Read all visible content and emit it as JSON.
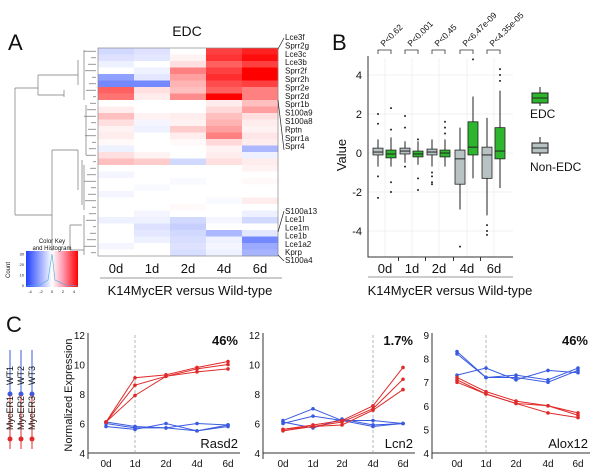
{
  "chart_data": [
    {
      "panel": "A",
      "type": "heatmap",
      "title": "EDC",
      "xlabel": "K14MycER versus Wild-type",
      "columns": [
        "0d",
        "1d",
        "2d",
        "4d",
        "6d"
      ],
      "gene_labels_top": [
        "Lce3f",
        "Sprr2g",
        "Lce3c",
        "Lce3b",
        "Sprr2f",
        "Sprr2h",
        "Sprr2e",
        "Sprr2d",
        "Sprr1b",
        "S100a9",
        "S100a8",
        "Rptn",
        "Sprr1a",
        "Sprr4"
      ],
      "gene_labels_bottom": [
        "S100a13",
        "Lce1l",
        "Lce1m",
        "Lce1b",
        "Lce1a2",
        "Kprp",
        "S100a4"
      ],
      "values": [
        [
          -0.8,
          -0.6,
          0,
          3,
          3.5
        ],
        [
          -0.6,
          -0.5,
          0.2,
          3.2,
          3.8
        ],
        [
          -0.3,
          0,
          0.5,
          2.5,
          3
        ],
        [
          0,
          -0.3,
          2,
          3,
          4.2
        ],
        [
          -2,
          -0.5,
          1.5,
          3.3,
          4
        ],
        [
          -2.5,
          -2.5,
          1.2,
          2.8,
          3
        ],
        [
          2.5,
          0.5,
          1,
          2.5,
          2
        ],
        [
          2.2,
          0.3,
          1.8,
          4,
          2
        ],
        [
          0,
          0,
          0,
          0.3,
          1
        ],
        [
          0.3,
          0,
          0,
          0.6,
          1.5
        ],
        [
          1,
          0.2,
          0.3,
          1,
          0.5
        ],
        [
          0.5,
          -0.2,
          0.2,
          1.2,
          0.3
        ],
        [
          0.2,
          -0.3,
          0.8,
          1.5,
          0.2
        ],
        [
          0.3,
          0,
          0.3,
          2,
          0.4
        ],
        [
          0.1,
          0,
          0.1,
          0.6,
          0.3
        ],
        [
          -0.3,
          0,
          0,
          0.2,
          -1.5
        ],
        [
          0.5,
          0.2,
          0,
          0.3,
          -0.3
        ],
        [
          1,
          0.8,
          -0.8,
          0.5,
          0.3
        ],
        [
          0,
          0,
          0,
          0,
          0.2
        ],
        [
          -0.2,
          0,
          0,
          0,
          0
        ],
        [
          0,
          0,
          -0.1,
          0,
          0.1
        ],
        [
          0,
          -0.1,
          0,
          0,
          0
        ],
        [
          -0.2,
          0,
          0,
          0,
          0
        ],
        [
          0,
          0,
          0,
          -0.1,
          0.3
        ],
        [
          0,
          0,
          0.1,
          0,
          0
        ],
        [
          0,
          -0.2,
          0,
          0,
          -0.3
        ],
        [
          -0.3,
          -0.3,
          -0.8,
          -0.2,
          -0.8
        ],
        [
          0,
          -0.6,
          -1,
          0,
          0
        ],
        [
          0,
          -0.5,
          -0.8,
          -1.5,
          -0.5
        ],
        [
          0,
          -0.3,
          -0.7,
          -0.3,
          -2.5
        ],
        [
          -0.2,
          0,
          -0.6,
          -0.2,
          -1.8
        ],
        [
          0,
          0,
          -0.7,
          -0.3,
          -1.6
        ]
      ],
      "color_key": {
        "title_line1": "Color Key",
        "title_line2": "and Histogram",
        "ylabel": "Count",
        "yticks": [
          "0",
          "10",
          "20",
          "30"
        ],
        "xticks": [
          "-4",
          "-2",
          "0",
          "2",
          "4"
        ],
        "low_color": "#2040ff",
        "mid_color": "#ffffff",
        "high_color": "#ff0000"
      }
    },
    {
      "panel": "B",
      "type": "box",
      "ylabel": "Value",
      "xlabel": "K14MycER versus Wild-type",
      "categories": [
        "0d",
        "1d",
        "2d",
        "4d",
        "6d"
      ],
      "yticks": [
        -4,
        -2,
        0,
        2,
        4
      ],
      "ylim": [
        -5.2,
        5.2
      ],
      "pvalues": [
        "P<0.62",
        "P<0.001",
        "P<0.45",
        "P<6.47e-09",
        "P<4.35e-05"
      ],
      "series": [
        {
          "name": "Non-EDC",
          "color": "#b8c2c2",
          "boxes": [
            {
              "whislo": -0.7,
              "q1": -0.1,
              "med": 0.05,
              "q3": 0.25,
              "whishi": 0.7,
              "fliers": [
                2,
                1.5,
                -1.2,
                -2.3
              ]
            },
            {
              "whislo": -0.5,
              "q1": -0.05,
              "med": 0.1,
              "q3": 0.25,
              "whishi": 0.6,
              "fliers": [
                1.9,
                1.3,
                -0.7
              ]
            },
            {
              "whislo": -0.7,
              "q1": -0.1,
              "med": 0.05,
              "q3": 0.2,
              "whishi": 0.7,
              "fliers": [
                -1,
                -1.2,
                -1.5,
                -1.6
              ]
            },
            {
              "whislo": -2.9,
              "q1": -1.6,
              "med": -0.3,
              "q3": 0.15,
              "whishi": 1.3,
              "fliers": [
                -4.8
              ]
            },
            {
              "whislo": -3.2,
              "q1": -1.3,
              "med": -0.1,
              "q3": 0.3,
              "whishi": 1.8,
              "fliers": [
                -3.7,
                -4.0,
                -4.2
              ]
            }
          ]
        },
        {
          "name": "EDC",
          "color": "#2db52d",
          "boxes": [
            {
              "whislo": -0.7,
              "q1": -0.25,
              "med": -0.05,
              "q3": 0.15,
              "whishi": 0.8,
              "fliers": [
                2.3,
                1.2,
                -1.5,
                -2.0
              ]
            },
            {
              "whislo": -0.6,
              "q1": -0.2,
              "med": -0.05,
              "q3": 0.1,
              "whishi": 0.6,
              "fliers": [
                0.7,
                -1.3,
                -1.9
              ]
            },
            {
              "whislo": -0.7,
              "q1": -0.2,
              "med": 0,
              "q3": 0.15,
              "whishi": 0.7,
              "fliers": [
                1.0,
                1.3,
                1.6
              ]
            },
            {
              "whislo": -1.3,
              "q1": -0.1,
              "med": 0.3,
              "q3": 1.6,
              "whishi": 2.9,
              "fliers": [
                4.8
              ]
            },
            {
              "whislo": -1.8,
              "q1": -0.3,
              "med": 0.1,
              "q3": 1.3,
              "whishi": 3.2,
              "fliers": [
                3.7,
                4.0,
                4.3
              ]
            }
          ]
        }
      ],
      "legend": [
        "EDC",
        "Non-EDC"
      ],
      "legend_placement": "right"
    },
    {
      "panel": "C",
      "type": "line",
      "ylabel": "Normalized Expression",
      "legend": [
        "WT1",
        "WT2",
        "WT3",
        "MycER1",
        "MycER2",
        "MycER3"
      ],
      "wt_color": "#3a5be0",
      "myc_color": "#e02a2a",
      "x": [
        "0d",
        "1d",
        "2d",
        "4d",
        "6d"
      ],
      "plots": [
        {
          "gene": "Rasd2",
          "percent": "46%",
          "ylim": [
            4,
            12
          ],
          "yticks": [
            4,
            6,
            8,
            10,
            12
          ],
          "marker_at": "1d",
          "wt": [
            [
              6.1,
              5.8,
              5.7,
              6.0,
              5.9
            ],
            [
              5.8,
              5.6,
              6.0,
              5.5,
              5.9
            ],
            [
              6.0,
              5.7,
              5.7,
              5.5,
              5.8
            ]
          ],
          "myc": [
            [
              6.1,
              9.1,
              9.3,
              9.8,
              10.2
            ],
            [
              6.1,
              8.6,
              9.2,
              9.7,
              10.0
            ],
            [
              6.1,
              7.9,
              9.2,
              9.5,
              9.7
            ]
          ]
        },
        {
          "gene": "Lcn2",
          "percent": "1.7%",
          "ylim": [
            4,
            12
          ],
          "yticks": [
            4,
            6,
            8,
            10,
            12
          ],
          "marker_at": "4d",
          "wt": [
            [
              6.2,
              7.0,
              6.2,
              6.2,
              6.0
            ],
            [
              6.0,
              6.5,
              6.2,
              5.8,
              6.0
            ],
            [
              6.1,
              5.7,
              6.3,
              5.9,
              6.0
            ]
          ],
          "myc": [
            [
              5.6,
              5.9,
              6.2,
              7.2,
              9.8
            ],
            [
              5.5,
              5.8,
              6.1,
              7.0,
              9.0
            ],
            [
              5.6,
              5.8,
              5.9,
              6.9,
              8.3
            ]
          ]
        },
        {
          "gene": "Alox12",
          "percent": "46%",
          "ylim": [
            4,
            9
          ],
          "yticks": [
            4,
            5,
            6,
            7,
            8,
            9
          ],
          "marker_at": "1d",
          "wt": [
            [
              8.3,
              7.2,
              7.3,
              7.1,
              7.6
            ],
            [
              8.2,
              7.2,
              7.2,
              7.0,
              7.5
            ],
            [
              7.3,
              7.6,
              7.1,
              7.5,
              7.4
            ]
          ],
          "myc": [
            [
              7.2,
              6.6,
              6.2,
              6.0,
              5.7
            ],
            [
              7.1,
              6.5,
              6.1,
              6.0,
              5.6
            ],
            [
              7.0,
              6.5,
              6.1,
              5.7,
              5.5
            ]
          ]
        }
      ]
    }
  ],
  "panel_labels": [
    "A",
    "B",
    "C"
  ]
}
